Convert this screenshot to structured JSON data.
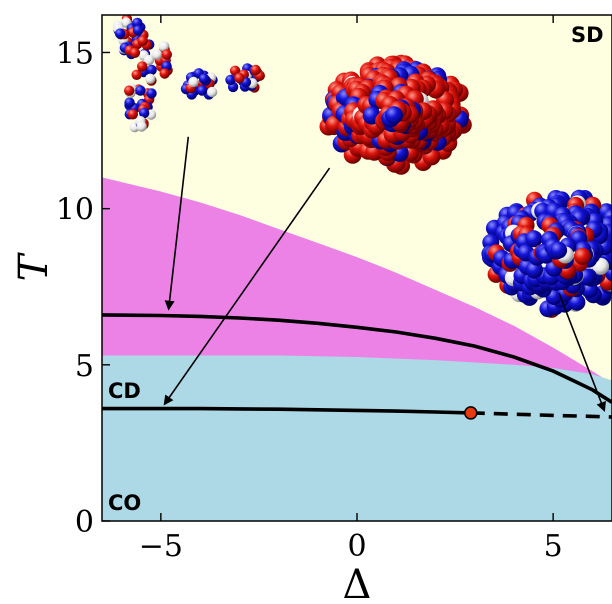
{
  "chart_data": {
    "type": "area",
    "xlabel": "Δ",
    "ylabel": "T",
    "xlim": [
      -6.5,
      6.5
    ],
    "ylim": [
      0,
      16.2
    ],
    "xticks": [
      -5,
      0,
      5
    ],
    "xtick_labels": [
      "−5",
      "0",
      "5"
    ],
    "yticks": [
      0,
      5,
      10,
      15
    ],
    "ytick_labels": [
      "0",
      "5",
      "10",
      "15"
    ],
    "grid": false,
    "colors": {
      "SD": "#fefee0",
      "middle": "#ec82e6",
      "CD": "#add8e6",
      "line": "#000000",
      "critical_point": "#e8380d"
    },
    "regions": [
      {
        "label": "SD",
        "color": "#fefee0"
      },
      {
        "label": "",
        "color": "#ec82e6",
        "upper_boundary": {
          "x": [
            -6.5,
            -5,
            -4,
            -3,
            -2,
            -1,
            0,
            1,
            2,
            3,
            4,
            5,
            6,
            6.5
          ],
          "y": [
            11.0,
            10.55,
            10.2,
            9.8,
            9.35,
            8.9,
            8.45,
            7.95,
            7.4,
            6.85,
            6.25,
            5.55,
            4.8,
            4.4
          ]
        }
      },
      {
        "label": "CD",
        "color": "#add8e6",
        "upper_boundary": {
          "x": [
            -6.5,
            -2,
            0,
            2,
            4,
            5,
            6,
            6.5
          ],
          "y": [
            5.3,
            5.3,
            5.25,
            5.15,
            5.0,
            4.9,
            4.7,
            4.5
          ]
        }
      },
      {
        "label": "CO",
        "color": "#add8e6"
      }
    ],
    "series": [
      {
        "style": "solid",
        "x": [
          -6.5,
          -5,
          -4,
          -3,
          -2,
          -1,
          0,
          1,
          2,
          3,
          4,
          5,
          5.5,
          6,
          6.5
        ],
        "y": [
          6.6,
          6.58,
          6.55,
          6.5,
          6.43,
          6.33,
          6.2,
          6.05,
          5.85,
          5.6,
          5.25,
          4.8,
          4.5,
          4.2,
          3.8
        ]
      },
      {
        "style": "solid",
        "x": [
          -6.5,
          -5,
          -4,
          -3,
          -2,
          -1,
          0,
          1,
          2,
          2.9
        ],
        "y": [
          3.6,
          3.6,
          3.6,
          3.59,
          3.58,
          3.56,
          3.54,
          3.52,
          3.49,
          3.46
        ]
      },
      {
        "style": "dashed",
        "x": [
          2.9,
          4,
          5,
          6,
          6.5
        ],
        "y": [
          3.46,
          3.42,
          3.38,
          3.35,
          3.33
        ]
      }
    ],
    "critical_point": {
      "x": 2.9,
      "y": 3.46
    },
    "annotations": [
      {
        "text": "SD"
      },
      {
        "text": "CD"
      },
      {
        "text": "CO"
      }
    ],
    "arrows": [
      {
        "from": [
          -4.3,
          12.3
        ],
        "to": [
          -4.8,
          6.8
        ]
      },
      {
        "from": [
          -0.7,
          11.3
        ],
        "to": [
          -4.9,
          3.75
        ]
      },
      {
        "from": [
          5.15,
          7.3
        ],
        "to": [
          6.3,
          3.55
        ]
      }
    ],
    "insets": [
      {
        "name": "extended-chain-snapshot",
        "center": [
          -4.8,
          13.2
        ]
      },
      {
        "name": "red-rich-globule-snapshot",
        "center": [
          1.0,
          13.0
        ]
      },
      {
        "name": "blue-rich-globule-snapshot",
        "center": [
          5.15,
          8.6
        ]
      }
    ]
  }
}
